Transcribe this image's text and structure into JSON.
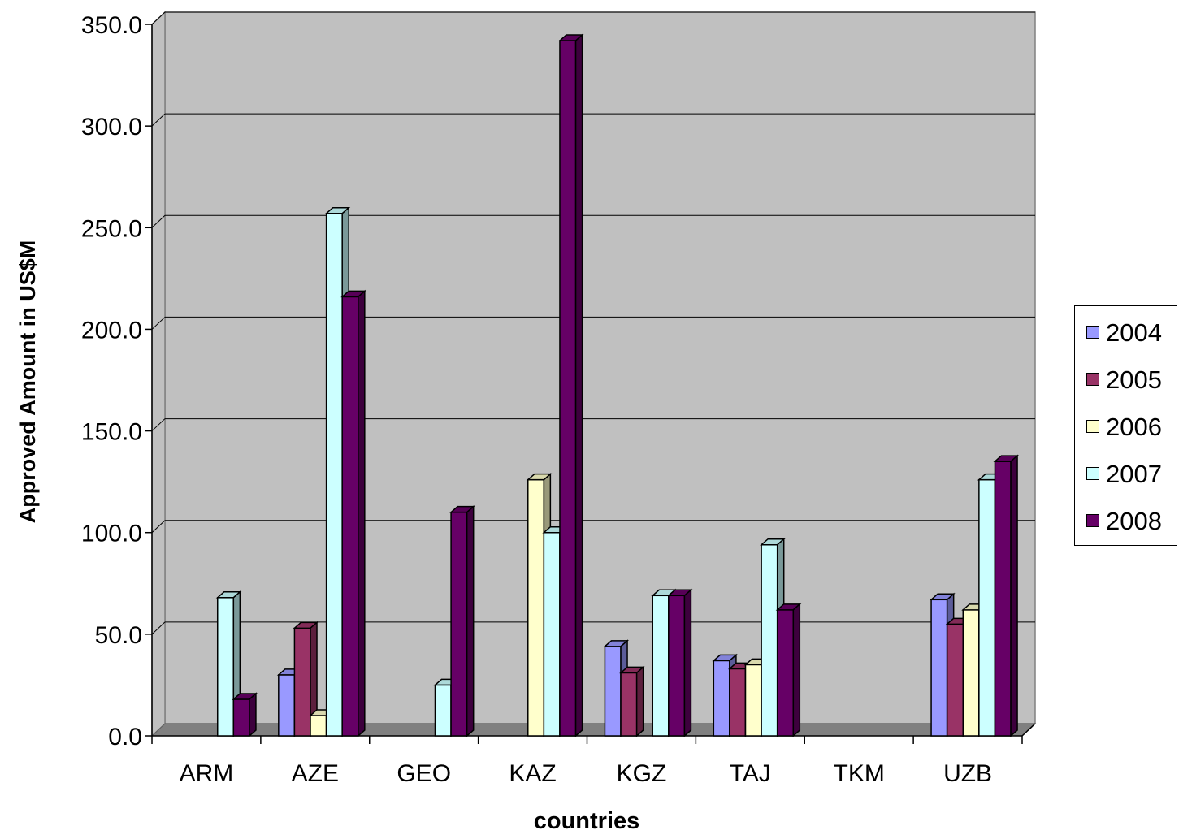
{
  "chart_data": {
    "type": "bar",
    "title": "",
    "xlabel": "countries",
    "ylabel": "Approved Amount in US$M",
    "ylim": [
      0,
      350
    ],
    "yticks": [
      "0.0",
      "50.0",
      "100.0",
      "150.0",
      "200.0",
      "250.0",
      "300.0",
      "350.0"
    ],
    "categories": [
      "ARM",
      "AZE",
      "GEO",
      "KAZ",
      "KGZ",
      "TAJ",
      "TKM",
      "UZB"
    ],
    "grid": true,
    "legend_position": "right",
    "series": [
      {
        "name": "2004",
        "color": "#9999ff",
        "values": [
          0,
          30,
          0,
          0,
          44,
          37,
          0,
          67
        ]
      },
      {
        "name": "2005",
        "color": "#993366",
        "values": [
          0,
          53,
          0,
          0,
          31,
          33,
          0,
          55
        ]
      },
      {
        "name": "2006",
        "color": "#ffffcc",
        "values": [
          0,
          10,
          0,
          126,
          0,
          35,
          0,
          62
        ]
      },
      {
        "name": "2007",
        "color": "#ccffff",
        "values": [
          68,
          257,
          25,
          100,
          69,
          94,
          0,
          126
        ]
      },
      {
        "name": "2008",
        "color": "#660066",
        "values": [
          18,
          216,
          110,
          342,
          69,
          62,
          0,
          135
        ]
      }
    ]
  }
}
